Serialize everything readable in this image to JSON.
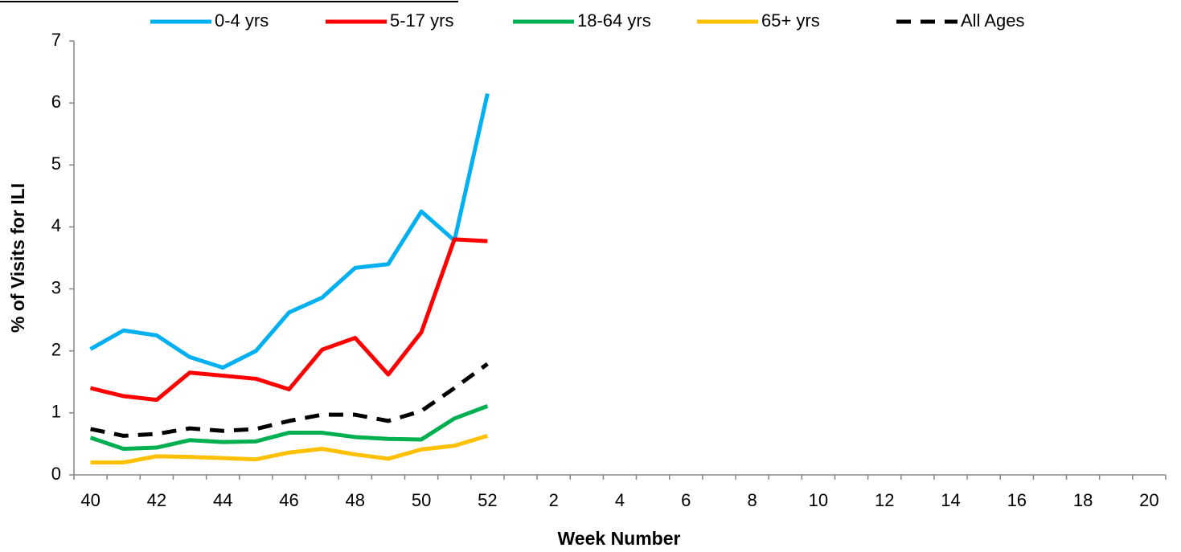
{
  "chart_data": {
    "type": "line",
    "xlabel": "Week Number",
    "ylabel": "% of Visits for ILI",
    "categories": [
      40,
      null,
      42,
      null,
      44,
      null,
      46,
      null,
      48,
      null,
      50,
      null,
      52,
      null,
      2,
      null,
      4,
      null,
      6,
      null,
      8,
      null,
      10,
      null,
      12,
      null,
      14,
      null,
      16,
      null,
      18,
      null,
      20
    ],
    "series": [
      {
        "name": "0-4 yrs",
        "color": "#00b0f0",
        "dashed": false,
        "values": [
          2.03,
          2.33,
          2.25,
          1.9,
          1.73,
          2.0,
          2.62,
          2.86,
          3.34,
          3.4,
          4.25,
          3.78,
          6.15,
          null,
          null,
          null,
          null,
          null,
          null,
          null,
          null,
          null,
          null,
          null,
          null,
          null,
          null,
          null,
          null,
          null,
          null,
          null,
          null
        ]
      },
      {
        "name": "5-17 yrs",
        "color": "#ff0000",
        "dashed": false,
        "values": [
          1.4,
          1.27,
          1.21,
          1.65,
          1.6,
          1.55,
          1.38,
          2.02,
          2.21,
          1.62,
          2.3,
          3.8,
          3.77,
          null,
          null,
          null,
          null,
          null,
          null,
          null,
          null,
          null,
          null,
          null,
          null,
          null,
          null,
          null,
          null,
          null,
          null,
          null,
          null
        ]
      },
      {
        "name": "18-64 yrs",
        "color": "#00b050",
        "dashed": false,
        "values": [
          0.6,
          0.42,
          0.44,
          0.56,
          0.53,
          0.54,
          0.68,
          0.68,
          0.61,
          0.58,
          0.57,
          0.91,
          1.11,
          null,
          null,
          null,
          null,
          null,
          null,
          null,
          null,
          null,
          null,
          null,
          null,
          null,
          null,
          null,
          null,
          null,
          null,
          null,
          null
        ]
      },
      {
        "name": "65+ yrs",
        "color": "#ffc000",
        "dashed": false,
        "values": [
          0.2,
          0.2,
          0.3,
          0.29,
          0.27,
          0.25,
          0.36,
          0.42,
          0.33,
          0.26,
          0.41,
          0.47,
          0.63,
          null,
          null,
          null,
          null,
          null,
          null,
          null,
          null,
          null,
          null,
          null,
          null,
          null,
          null,
          null,
          null,
          null,
          null,
          null,
          null
        ]
      },
      {
        "name": "All Ages",
        "color": "#000000",
        "dashed": true,
        "values": [
          0.74,
          0.63,
          0.66,
          0.75,
          0.71,
          0.74,
          0.87,
          0.97,
          0.97,
          0.87,
          1.03,
          1.4,
          1.79,
          null,
          null,
          null,
          null,
          null,
          null,
          null,
          null,
          null,
          null,
          null,
          null,
          null,
          null,
          null,
          null,
          null,
          null,
          null,
          null
        ]
      }
    ],
    "ylim": [
      0,
      7
    ],
    "yticks": [
      0,
      1,
      2,
      3,
      4,
      5,
      6,
      7
    ],
    "grid": false,
    "legend": "top"
  }
}
